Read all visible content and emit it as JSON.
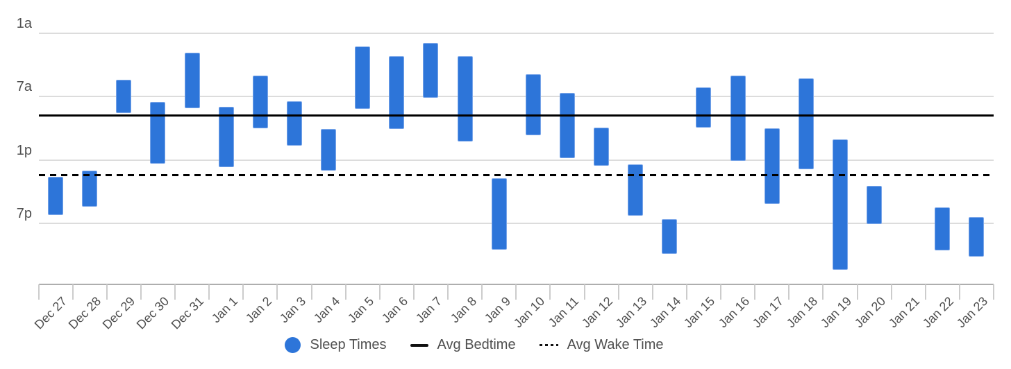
{
  "colors": {
    "bar_fill": "#2d75d9",
    "bar_border": "#7aa6e9",
    "gridline": "#dcdcdc",
    "axis_line": "#aeaeae",
    "tick": "#cccccc",
    "text": "#4f4f4f",
    "avg_line": "#000000",
    "background": "#ffffff"
  },
  "chart_data": {
    "type": "bar",
    "subtype": "floating-range-bars-time-of-day",
    "title": "",
    "xlabel": "",
    "ylabel": "",
    "grid": true,
    "legend_position": "bottom-center",
    "y_axis": {
      "direction": "down",
      "unit": "time of day",
      "tick_labels": [
        "1a",
        "7a",
        "1p",
        "7p"
      ],
      "tick_hours": [
        1,
        7,
        13,
        19
      ]
    },
    "categories": [
      "Dec 27",
      "Dec 28",
      "Dec 29",
      "Dec 30",
      "Dec 31",
      "Jan 1",
      "Jan 2",
      "Jan 3",
      "Jan 4",
      "Jan 5",
      "Jan 6",
      "Jan 7",
      "Jan 8",
      "Jan 9",
      "Jan 10",
      "Jan 11",
      "Jan 12",
      "Jan 13",
      "Jan 14",
      "Jan 15",
      "Jan 16",
      "Jan 17",
      "Jan 18",
      "Jan 19",
      "Jan 20",
      "Jan 21",
      "Jan 22",
      "Jan 23"
    ],
    "bars": [
      {
        "date": "Dec 27",
        "start_h": 14.58,
        "end_h": 18.23,
        "start": "2:35 PM",
        "end": "6:15 PM"
      },
      {
        "date": "Dec 28",
        "start_h": 14.0,
        "end_h": 17.42,
        "start": "2:00 PM",
        "end": "5:25 PM"
      },
      {
        "date": "Dec 29",
        "start_h": 5.42,
        "end_h": 8.53,
        "start": "5:25 AM",
        "end": "8:30 AM"
      },
      {
        "date": "Dec 30",
        "start_h": 7.5,
        "end_h": 13.35,
        "start": "7:30 AM",
        "end": "1:20 PM"
      },
      {
        "date": "Dec 31",
        "start_h": 2.83,
        "end_h": 8.08,
        "start": "2:50 AM",
        "end": "8:05 AM"
      },
      {
        "date": "Jan 1",
        "start_h": 7.97,
        "end_h": 13.67,
        "start": "7:58 AM",
        "end": "1:40 PM"
      },
      {
        "date": "Jan 2",
        "start_h": 5.03,
        "end_h": 9.97,
        "start": "5:00 AM",
        "end": "9:58 AM"
      },
      {
        "date": "Jan 3",
        "start_h": 7.45,
        "end_h": 11.65,
        "start": "7:27 AM",
        "end": "11:39 AM"
      },
      {
        "date": "Jan 4",
        "start_h": 10.05,
        "end_h": 14.0,
        "start": "10:05 AM",
        "end": "2:00 PM"
      },
      {
        "date": "Jan 5",
        "start_h": 2.27,
        "end_h": 8.18,
        "start": "2:15 AM",
        "end": "8:10 AM"
      },
      {
        "date": "Jan 6",
        "start_h": 3.15,
        "end_h": 10.05,
        "start": "3:10 AM",
        "end": "10:05 AM"
      },
      {
        "date": "Jan 7",
        "start_h": 1.93,
        "end_h": 7.08,
        "start": "1:55 AM",
        "end": "7:05 AM"
      },
      {
        "date": "Jan 8",
        "start_h": 3.15,
        "end_h": 11.27,
        "start": "3:10 AM",
        "end": "11:15 AM"
      },
      {
        "date": "Jan 9",
        "start_h": 14.75,
        "end_h": 21.5,
        "start": "2:45 PM",
        "end": "9:30 PM"
      },
      {
        "date": "Jan 10",
        "start_h": 4.9,
        "end_h": 10.67,
        "start": "4:55 AM",
        "end": "10:40 AM"
      },
      {
        "date": "Jan 11",
        "start_h": 6.65,
        "end_h": 12.82,
        "start": "6:40 AM",
        "end": "12:50 PM"
      },
      {
        "date": "Jan 12",
        "start_h": 9.93,
        "end_h": 13.52,
        "start": "9:55 AM",
        "end": "1:30 PM"
      },
      {
        "date": "Jan 13",
        "start_h": 13.4,
        "end_h": 18.27,
        "start": "1:25 PM",
        "end": "6:15 PM"
      },
      {
        "date": "Jan 14",
        "start_h": 18.62,
        "end_h": 21.9,
        "start": "6:35 PM",
        "end": "9:55 PM"
      },
      {
        "date": "Jan 15",
        "start_h": 6.12,
        "end_h": 9.93,
        "start": "6:10 AM",
        "end": "9:55 AM"
      },
      {
        "date": "Jan 16",
        "start_h": 5.03,
        "end_h": 13.07,
        "start": "5:00 AM",
        "end": "1:05 PM"
      },
      {
        "date": "Jan 17",
        "start_h": 10.0,
        "end_h": 17.12,
        "start": "10:00 AM",
        "end": "5:05 PM"
      },
      {
        "date": "Jan 18",
        "start_h": 5.28,
        "end_h": 13.88,
        "start": "5:15 AM",
        "end": "1:55 PM"
      },
      {
        "date": "Jan 19",
        "start_h": 11.05,
        "end_h": 23.42,
        "start": "11:05 AM",
        "end": "11:25 PM"
      },
      {
        "date": "Jan 20",
        "start_h": 15.43,
        "end_h": 19.05,
        "start": "3:25 PM",
        "end": "7:05 PM"
      },
      {
        "date": "Jan 21",
        "start_h": null,
        "end_h": null,
        "start": null,
        "end": null
      },
      {
        "date": "Jan 22",
        "start_h": 17.45,
        "end_h": 21.57,
        "start": "5:25 PM",
        "end": "9:35 PM"
      },
      {
        "date": "Jan 23",
        "start_h": 18.37,
        "end_h": 22.12,
        "start": "6:20 PM",
        "end": "10:05 PM"
      }
    ],
    "avg_bedtime": {
      "label": "Avg Bedtime",
      "hour": 8.81,
      "time": "8:50 AM",
      "style": "solid"
    },
    "avg_wake_time": {
      "label": "Avg Wake Time",
      "hour": 14.46,
      "time": "2:30 PM",
      "style": "dotted"
    },
    "legend": [
      {
        "label": "Sleep Times",
        "swatch": "circle",
        "color": "#2d75d9"
      },
      {
        "label": "Avg Bedtime",
        "swatch": "solid-line",
        "color": "#000000"
      },
      {
        "label": "Avg Wake Time",
        "swatch": "dotted-line",
        "color": "#000000"
      }
    ]
  }
}
